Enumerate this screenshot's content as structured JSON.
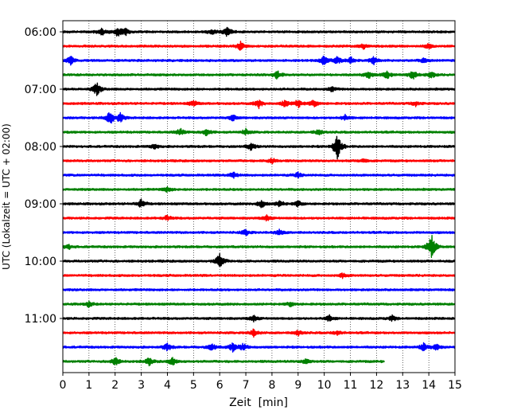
{
  "chart_data": {
    "type": "line",
    "title": "",
    "xlabel": "Zeit  [min]",
    "ylabel": "UTC (Lokalzeit = UTC + 02:00)",
    "xlim": [
      0,
      15
    ],
    "x_ticks": [
      "0",
      "1",
      "2",
      "3",
      "4",
      "5",
      "6",
      "7",
      "8",
      "9",
      "10",
      "11",
      "12",
      "13",
      "14",
      "15"
    ],
    "y_ticks": [
      "06:00",
      "07:00",
      "08:00",
      "09:00",
      "10:00",
      "11:00"
    ],
    "grid": "vertical dotted",
    "colors": [
      "#000000",
      "#ff0000",
      "#0000ff",
      "#008000"
    ],
    "trace_minutes": 15,
    "traces": [
      {
        "start": "06:00",
        "color": "#000000",
        "end_min": 15,
        "events": [
          [
            1.5,
            0.5
          ],
          [
            2.1,
            0.6
          ],
          [
            2.4,
            0.4
          ],
          [
            6.3,
            0.7
          ],
          [
            5.7,
            0.35
          ]
        ]
      },
      {
        "start": "06:15",
        "color": "#ff0000",
        "end_min": 15,
        "events": [
          [
            6.8,
            0.55
          ],
          [
            11.5,
            0.35
          ],
          [
            14.0,
            0.3
          ]
        ]
      },
      {
        "start": "06:30",
        "color": "#0000ff",
        "end_min": 15,
        "events": [
          [
            0.3,
            0.6
          ],
          [
            10.0,
            0.7
          ],
          [
            10.5,
            0.5
          ],
          [
            11.0,
            0.5
          ],
          [
            11.9,
            0.55
          ],
          [
            13.8,
            0.35
          ]
        ]
      },
      {
        "start": "06:45",
        "color": "#008000",
        "end_min": 15,
        "events": [
          [
            8.2,
            0.6
          ],
          [
            11.7,
            0.6
          ],
          [
            12.4,
            0.5
          ],
          [
            13.4,
            0.6
          ],
          [
            14.1,
            0.5
          ]
        ]
      },
      {
        "start": "07:00",
        "color": "#000000",
        "end_min": 15,
        "events": [
          [
            1.3,
            0.9
          ],
          [
            10.3,
            0.35
          ]
        ]
      },
      {
        "start": "07:15",
        "color": "#ff0000",
        "end_min": 15,
        "events": [
          [
            5.0,
            0.4
          ],
          [
            7.5,
            0.55
          ],
          [
            8.5,
            0.5
          ],
          [
            9.0,
            0.6
          ],
          [
            9.6,
            0.5
          ],
          [
            13.5,
            0.3
          ]
        ]
      },
      {
        "start": "07:30",
        "color": "#0000ff",
        "end_min": 15,
        "events": [
          [
            1.8,
            1.0
          ],
          [
            2.2,
            0.6
          ],
          [
            6.5,
            0.4
          ],
          [
            10.8,
            0.35
          ]
        ]
      },
      {
        "start": "07:45",
        "color": "#008000",
        "end_min": 15,
        "events": [
          [
            4.5,
            0.5
          ],
          [
            5.5,
            0.5
          ],
          [
            7.0,
            0.4
          ],
          [
            9.8,
            0.4
          ]
        ]
      },
      {
        "start": "08:00",
        "color": "#000000",
        "end_min": 15,
        "events": [
          [
            3.5,
            0.35
          ],
          [
            7.2,
            0.5
          ],
          [
            10.5,
            1.8
          ]
        ]
      },
      {
        "start": "08:15",
        "color": "#ff0000",
        "end_min": 15,
        "events": [
          [
            8.0,
            0.4
          ],
          [
            11.5,
            0.3
          ]
        ]
      },
      {
        "start": "08:30",
        "color": "#0000ff",
        "end_min": 15,
        "events": [
          [
            6.5,
            0.5
          ],
          [
            9.0,
            0.35
          ]
        ]
      },
      {
        "start": "08:45",
        "color": "#008000",
        "end_min": 15,
        "events": [
          [
            4.0,
            0.35
          ]
        ]
      },
      {
        "start": "09:00",
        "color": "#000000",
        "end_min": 15,
        "events": [
          [
            3.0,
            0.6
          ],
          [
            7.6,
            0.6
          ],
          [
            8.3,
            0.45
          ],
          [
            9.0,
            0.4
          ]
        ]
      },
      {
        "start": "09:15",
        "color": "#ff0000",
        "end_min": 15,
        "events": [
          [
            4.0,
            0.35
          ],
          [
            7.8,
            0.35
          ]
        ]
      },
      {
        "start": "09:30",
        "color": "#0000ff",
        "end_min": 15,
        "events": [
          [
            7.0,
            0.4
          ],
          [
            8.3,
            0.4
          ]
        ]
      },
      {
        "start": "09:45",
        "color": "#008000",
        "end_min": 15,
        "events": [
          [
            0.2,
            0.35
          ],
          [
            14.1,
            1.8
          ]
        ]
      },
      {
        "start": "10:00",
        "color": "#000000",
        "end_min": 15,
        "events": [
          [
            6.0,
            1.1
          ]
        ]
      },
      {
        "start": "10:15",
        "color": "#ff0000",
        "end_min": 15,
        "events": [
          [
            10.7,
            0.3
          ]
        ]
      },
      {
        "start": "10:30",
        "color": "#0000ff",
        "end_min": 15,
        "events": []
      },
      {
        "start": "10:45",
        "color": "#008000",
        "end_min": 15,
        "events": [
          [
            1.0,
            0.35
          ],
          [
            8.7,
            0.3
          ]
        ]
      },
      {
        "start": "11:00",
        "color": "#000000",
        "end_min": 15,
        "events": [
          [
            7.3,
            0.4
          ],
          [
            10.2,
            0.4
          ],
          [
            12.6,
            0.35
          ]
        ]
      },
      {
        "start": "11:15",
        "color": "#ff0000",
        "end_min": 15,
        "events": [
          [
            7.3,
            0.5
          ],
          [
            9.0,
            0.4
          ],
          [
            10.5,
            0.3
          ]
        ]
      },
      {
        "start": "11:30",
        "color": "#0000ff",
        "end_min": 15,
        "events": [
          [
            4.0,
            0.5
          ],
          [
            5.7,
            0.5
          ],
          [
            6.5,
            0.6
          ],
          [
            6.9,
            0.5
          ],
          [
            13.8,
            0.5
          ],
          [
            14.3,
            0.4
          ]
        ]
      },
      {
        "start": "11:45",
        "color": "#008000",
        "end_min": 12.3,
        "events": [
          [
            2.0,
            0.6
          ],
          [
            3.3,
            0.5
          ],
          [
            4.2,
            0.5
          ],
          [
            9.3,
            0.4
          ]
        ]
      }
    ]
  }
}
